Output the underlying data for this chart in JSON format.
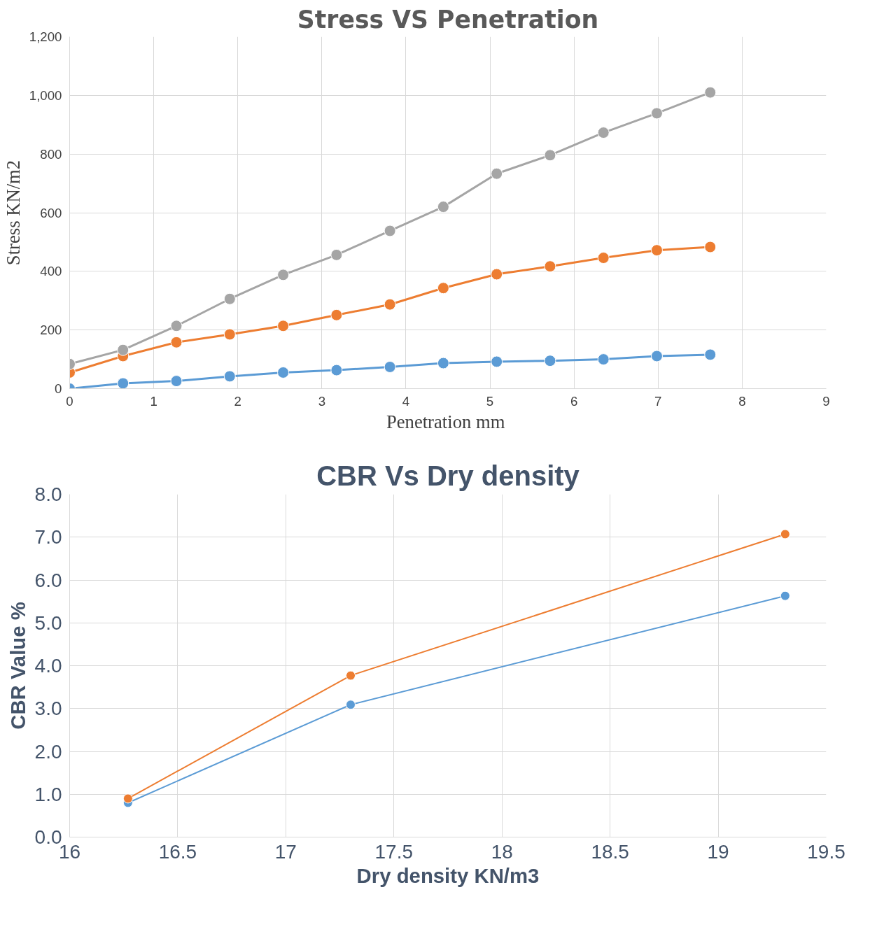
{
  "chart_data": [
    {
      "type": "line",
      "title": "Stress VS Penetration",
      "xlabel": "Penetration  mm",
      "ylabel": "Stress KN/m2",
      "x": [
        0,
        0.635,
        1.27,
        1.905,
        2.54,
        3.175,
        3.81,
        4.445,
        5.08,
        5.715,
        6.35,
        6.985,
        7.62
      ],
      "series": [
        {
          "color": "#5b9bd5",
          "values": [
            0,
            18,
            26,
            42,
            55,
            63,
            74,
            87,
            92,
            95,
            100,
            111,
            116
          ]
        },
        {
          "color": "#ed7d31",
          "values": [
            55,
            111,
            158,
            185,
            214,
            251,
            287,
            343,
            390,
            417,
            446,
            472,
            483
          ]
        },
        {
          "color": "#a5a5a5",
          "values": [
            84,
            132,
            214,
            306,
            388,
            456,
            538,
            620,
            733,
            796,
            873,
            939,
            1010
          ]
        }
      ],
      "xlim": [
        0,
        9
      ],
      "xticks": [
        0,
        1,
        2,
        3,
        4,
        5,
        6,
        7,
        8,
        9
      ],
      "ylim": [
        0,
        1200
      ],
      "yticks": [
        0,
        200,
        400,
        600,
        800,
        {
          "value": 1000,
          "label": "1,000"
        },
        {
          "value": 1200,
          "label": "1,200"
        }
      ],
      "grid": true,
      "marker": "circle",
      "line_style": "solid"
    },
    {
      "type": "line",
      "title": "CBR Vs Dry density",
      "xlabel": "Dry density KN/m3",
      "ylabel": "CBR Value %",
      "x": [
        16.27,
        17.3,
        19.31
      ],
      "series": [
        {
          "color": "#5b9bd5",
          "values": [
            0.8,
            3.09,
            5.63
          ]
        },
        {
          "color": "#ed7d31",
          "values": [
            0.9,
            3.77,
            7.07
          ]
        }
      ],
      "xlim": [
        16,
        19.5
      ],
      "xticks": [
        16,
        16.5,
        17,
        17.5,
        18,
        18.5,
        19,
        19.5
      ],
      "ylim": [
        0,
        8
      ],
      "yticks": [
        {
          "value": 0,
          "label": "0.0"
        },
        {
          "value": 1,
          "label": "1.0"
        },
        {
          "value": 2,
          "label": "2.0"
        },
        {
          "value": 3,
          "label": "3.0"
        },
        {
          "value": 4,
          "label": "4.0"
        },
        {
          "value": 5,
          "label": "5.0"
        },
        {
          "value": 6,
          "label": "6.0"
        },
        {
          "value": 7,
          "label": "7.0"
        },
        {
          "value": 8,
          "label": "8.0"
        }
      ],
      "grid": true,
      "marker": "circle",
      "line_style": "solid"
    }
  ]
}
